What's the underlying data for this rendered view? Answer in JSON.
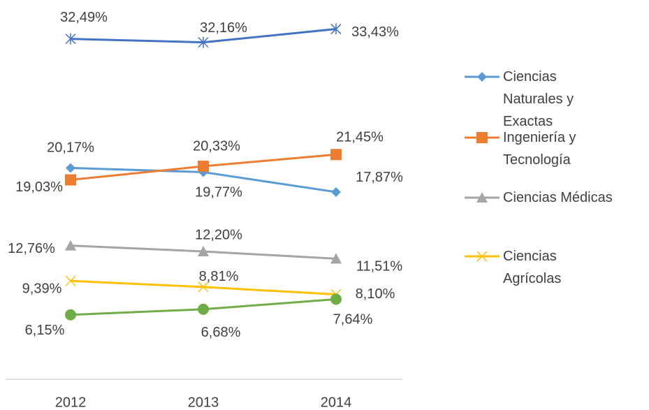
{
  "chart_data": {
    "type": "line",
    "categories": [
      "2012",
      "2013",
      "2014"
    ],
    "ylim": [
      0,
      36.2
    ],
    "series": [
      {
        "color": "#4472c4",
        "marker": "star",
        "values": [
          32.49,
          32.16,
          33.43
        ],
        "value_labels": [
          "32,49%",
          "32,16%",
          "33,43%"
        ]
      },
      {
        "name": "Ciencias Naturales y Exactas",
        "color": "#5b9bd5",
        "marker": "diamond",
        "values": [
          20.17,
          19.77,
          17.87
        ],
        "value_labels": [
          "20,17%",
          "19,77%",
          "17,87%"
        ]
      },
      {
        "name": "Ingeniería y Tecnología",
        "color": "#ed7d31",
        "marker": "square",
        "values": [
          19.03,
          20.33,
          21.45
        ],
        "value_labels": [
          "19,03%",
          "20,33%",
          "21,45%"
        ]
      },
      {
        "name": "Ciencias Médicas",
        "color": "#a5a5a5",
        "marker": "triangle",
        "values": [
          12.76,
          12.2,
          11.51
        ],
        "value_labels": [
          "12,76%",
          "12,20%",
          "11,51%"
        ]
      },
      {
        "name": "Ciencias Agrícolas",
        "color": "#ffc000",
        "marker": "x",
        "values": [
          9.39,
          8.81,
          8.1
        ],
        "value_labels": [
          "9,39%",
          "8,81%",
          "8,10%"
        ]
      },
      {
        "color": "#70ad47",
        "marker": "circle",
        "values": [
          6.15,
          6.68,
          7.64
        ],
        "value_labels": [
          "6,15%",
          "6,68%",
          "7,64%"
        ]
      }
    ]
  }
}
